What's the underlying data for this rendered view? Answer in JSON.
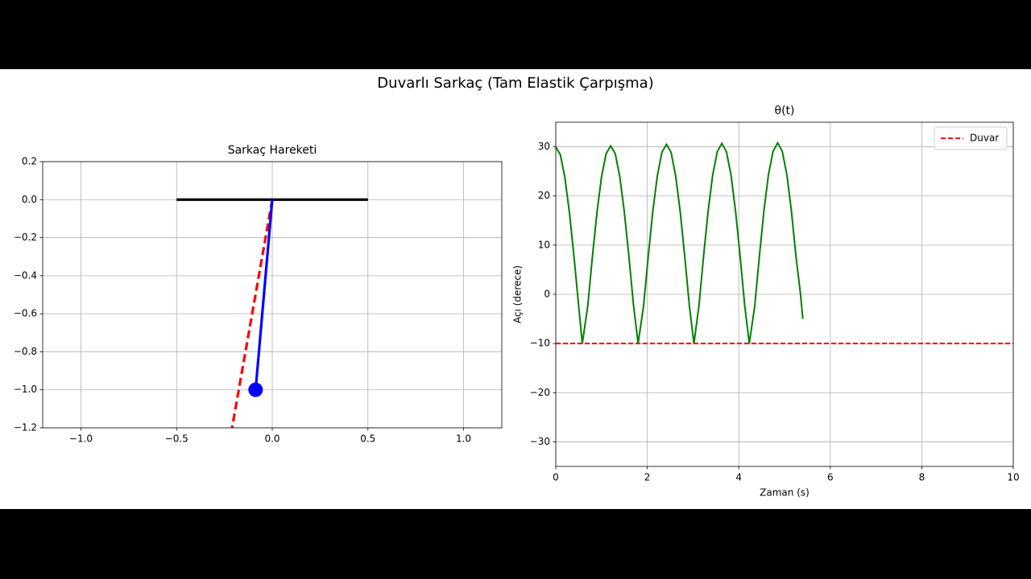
{
  "title": "Duvarlı Sarkaç (Tam Elastik Çarpışma)",
  "chart_data": [
    {
      "type": "line",
      "title": "Sarkaç Hareketi",
      "xlim": [
        -1.2,
        1.2
      ],
      "ylim": [
        -1.2,
        0.2
      ],
      "xticks": [
        {
          "value": -1.0,
          "label": "−1.0"
        },
        {
          "value": -0.5,
          "label": "−0.5"
        },
        {
          "value": 0,
          "label": "0.0"
        },
        0.5,
        {
          "value": 1.0,
          "label": "1.0"
        }
      ],
      "yticks": [
        0.2,
        {
          "value": 0,
          "label": "0.0"
        },
        {
          "value": -0.2,
          "label": "−0.2"
        },
        {
          "value": -0.4,
          "label": "−0.4"
        },
        {
          "value": -0.6,
          "label": "−0.6"
        },
        {
          "value": -0.8,
          "label": "−0.8"
        },
        {
          "value": -1.0,
          "label": "−1.0"
        },
        {
          "value": -1.2,
          "label": "−1.2"
        }
      ],
      "grid": true,
      "series": [
        {
          "color": "#000000",
          "x": [
            -0.5,
            0.5
          ],
          "values": [
            0,
            0
          ]
        },
        {
          "color": "#ff0000",
          "style": "dashed",
          "x": [
            0,
            -0.21
          ],
          "values": [
            0,
            -1.2
          ]
        },
        {
          "color": "#0000ff",
          "x": [
            0,
            -0.087
          ],
          "values": [
            0,
            -1
          ]
        },
        {
          "color": "#0000ff",
          "marker": "circle",
          "x": [
            -0.087
          ],
          "values": [
            -1
          ]
        }
      ]
    },
    {
      "type": "line",
      "title": "θ(t)",
      "xlabel": "Zaman (s)",
      "ylabel": "Açı (derece)",
      "xlim": [
        0,
        10
      ],
      "ylim": [
        -35,
        35
      ],
      "xticks": [
        0,
        2,
        4,
        6,
        8,
        10
      ],
      "yticks": [
        30,
        20,
        10,
        0,
        {
          "value": -10,
          "label": "−10"
        },
        {
          "value": -20,
          "label": "−20"
        },
        {
          "value": -30,
          "label": "−30"
        }
      ],
      "grid": true,
      "legend": "upper right",
      "series": [
        {
          "color": "#008000",
          "x": [
            0,
            0.1,
            0.2,
            0.3,
            0.4,
            0.5,
            0.58,
            0.7,
            0.8,
            0.9,
            1.0,
            1.1,
            1.2,
            1.3,
            1.4,
            1.5,
            1.6,
            1.7,
            1.8,
            1.92,
            2.02,
            2.12,
            2.22,
            2.32,
            2.42,
            2.52,
            2.62,
            2.72,
            2.82,
            2.92,
            3.02,
            3.13,
            3.23,
            3.33,
            3.43,
            3.53,
            3.63,
            3.73,
            3.83,
            3.93,
            4.03,
            4.13,
            4.23,
            4.35,
            4.45,
            4.55,
            4.65,
            4.75,
            4.85,
            4.95,
            5.05,
            5.15,
            5.25,
            5.35,
            5.4
          ],
          "values": [
            30,
            28.4,
            23.7,
            16.5,
            7.5,
            -2.3,
            -10,
            -2.3,
            7.6,
            16.6,
            23.9,
            28.6,
            30.2,
            28.6,
            23.9,
            16.6,
            7.6,
            -2.3,
            -10,
            -2.3,
            7.6,
            16.8,
            24.1,
            28.9,
            30.5,
            28.9,
            24.1,
            16.8,
            7.6,
            -2.3,
            -10,
            -2.3,
            7.7,
            16.9,
            24.3,
            29.0,
            30.7,
            29.0,
            24.3,
            16.9,
            7.7,
            -2.3,
            -10,
            -2.3,
            7.7,
            17.0,
            24.4,
            29.1,
            30.8,
            29.1,
            24.4,
            17.0,
            7.7,
            0,
            -5
          ]
        },
        {
          "name": "Duvar",
          "color": "#ff0000",
          "style": "dashed",
          "x": [
            0,
            10
          ],
          "values": [
            -10,
            -10
          ]
        }
      ]
    }
  ]
}
